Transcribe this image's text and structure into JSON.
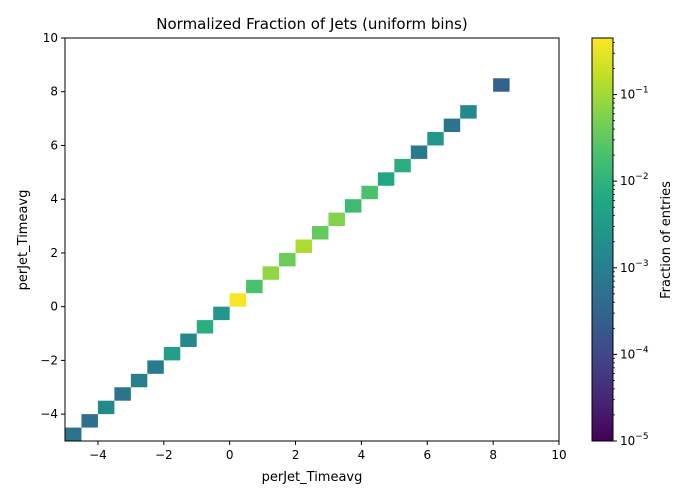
{
  "chart_data": {
    "type": "heatmap",
    "title": "Normalized Fraction of Jets (uniform bins)",
    "xlabel": "perJet_Timeavg",
    "ylabel": "perJet_Timeavg",
    "xlim": [
      -5,
      10
    ],
    "ylim": [
      -5,
      10
    ],
    "x_ticks": [
      -4,
      -2,
      0,
      2,
      4,
      6,
      8,
      10
    ],
    "y_ticks": [
      -4,
      -2,
      0,
      2,
      4,
      6,
      8,
      10
    ],
    "bin_width": 0.5,
    "colorbar": {
      "label": "Fraction of entries",
      "scale": "log",
      "colormap": "viridis",
      "range": [
        1e-05,
        0.45
      ],
      "tick_exponents": [
        -5,
        -4,
        -3,
        -2,
        -1
      ]
    },
    "cells": [
      {
        "x": -5.0,
        "y": -5.0,
        "value": 0.0006
      },
      {
        "x": -4.5,
        "y": -4.5,
        "value": 0.0005
      },
      {
        "x": -4.0,
        "y": -4.0,
        "value": 0.0015
      },
      {
        "x": -3.5,
        "y": -3.5,
        "value": 0.0006
      },
      {
        "x": -3.0,
        "y": -3.0,
        "value": 0.001
      },
      {
        "x": -2.5,
        "y": -2.5,
        "value": 0.0008
      },
      {
        "x": -2.0,
        "y": -2.0,
        "value": 0.004
      },
      {
        "x": -1.5,
        "y": -1.5,
        "value": 0.0015
      },
      {
        "x": -1.0,
        "y": -1.0,
        "value": 0.008
      },
      {
        "x": -0.5,
        "y": -0.5,
        "value": 0.003
      },
      {
        "x": 0.0,
        "y": 0.0,
        "value": 0.4
      },
      {
        "x": 0.5,
        "y": 0.5,
        "value": 0.02
      },
      {
        "x": 1.0,
        "y": 1.0,
        "value": 0.08
      },
      {
        "x": 1.5,
        "y": 1.5,
        "value": 0.04
      },
      {
        "x": 2.0,
        "y": 2.0,
        "value": 0.12
      },
      {
        "x": 2.5,
        "y": 2.5,
        "value": 0.035
      },
      {
        "x": 3.0,
        "y": 3.0,
        "value": 0.06
      },
      {
        "x": 3.5,
        "y": 3.5,
        "value": 0.015
      },
      {
        "x": 4.0,
        "y": 4.0,
        "value": 0.02
      },
      {
        "x": 4.5,
        "y": 4.5,
        "value": 0.006
      },
      {
        "x": 5.0,
        "y": 5.0,
        "value": 0.008
      },
      {
        "x": 5.5,
        "y": 5.5,
        "value": 0.0008
      },
      {
        "x": 6.0,
        "y": 6.0,
        "value": 0.003
      },
      {
        "x": 6.5,
        "y": 6.5,
        "value": 0.0006
      },
      {
        "x": 7.0,
        "y": 7.0,
        "value": 0.0015
      },
      {
        "x": 8.0,
        "y": 8.0,
        "value": 0.0003
      }
    ]
  }
}
